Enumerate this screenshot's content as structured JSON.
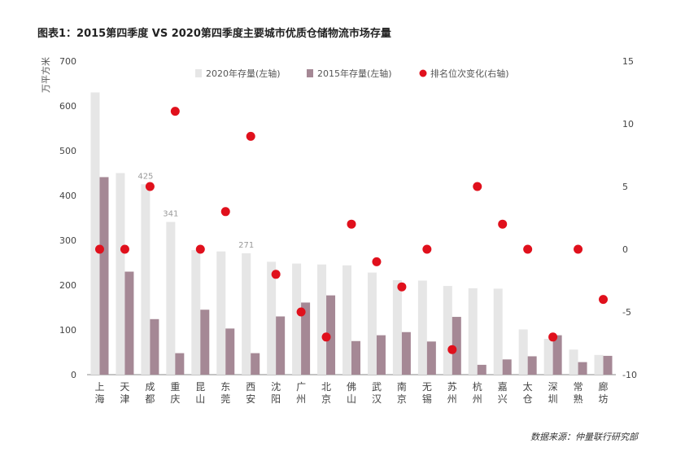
{
  "title": "图表1：2015第四季度 VS 2020第四季度主要城市优质仓储物流市场存量",
  "source": "数据来源：仲量联行研究部",
  "colors": {
    "s2020": "#e6e6e6",
    "s2015": "#a58895",
    "rank": "#e0101c",
    "axis": "#888888",
    "label2020": "#9a9a9a"
  },
  "chart_data": {
    "type": "bar",
    "categories": [
      "上海",
      "天津",
      "成都",
      "重庆",
      "昆山",
      "东莞",
      "西安",
      "沈阳",
      "广州",
      "北京",
      "佛山",
      "武汉",
      "南京",
      "无锡",
      "苏州",
      "杭州",
      "嘉兴",
      "太仓",
      "深圳",
      "常熟",
      "廊坊"
    ],
    "series": [
      {
        "name": "2020年存量(左轴)",
        "type": "bar",
        "axis": "left",
        "values": [
          630,
          450,
          425,
          341,
          278,
          275,
          271,
          252,
          248,
          246,
          244,
          228,
          211,
          210,
          198,
          193,
          192,
          101,
          80,
          56,
          44
        ]
      },
      {
        "name": "2015年存量(左轴)",
        "type": "bar",
        "axis": "left",
        "values": [
          441,
          230,
          124,
          48,
          145,
          103,
          48,
          130,
          161,
          177,
          75,
          88,
          95,
          74,
          129,
          22,
          34,
          41,
          88,
          28,
          42
        ]
      },
      {
        "name": "排名位次变化(右轴)",
        "type": "scatter",
        "axis": "right",
        "values": [
          0,
          0,
          5,
          11,
          0,
          3,
          9,
          -2,
          -5,
          -7,
          2,
          -1,
          -3,
          0,
          -8,
          5,
          2,
          0,
          -7,
          0,
          -4
        ]
      }
    ],
    "data_labels": [
      {
        "category": "成都",
        "text": "425"
      },
      {
        "category": "重庆",
        "text": "341"
      },
      {
        "category": "西安",
        "text": "271"
      }
    ],
    "ylabel": "万平方米",
    "ylim_left": [
      0,
      700
    ],
    "ylim_right": [
      -10,
      15
    ],
    "yticks_left": [
      0,
      100,
      200,
      300,
      400,
      500,
      600,
      700
    ],
    "yticks_right": [
      -10,
      -5,
      0,
      5,
      10,
      15
    ],
    "legend_position": "top",
    "grid": false
  }
}
